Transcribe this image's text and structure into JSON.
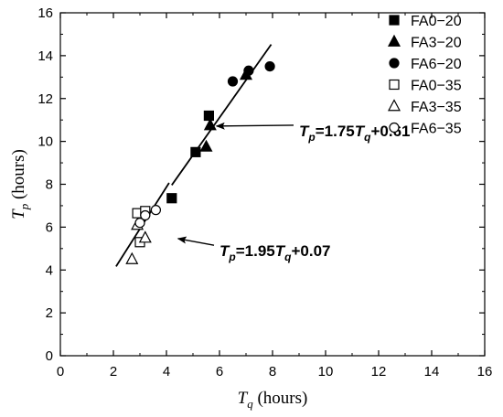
{
  "chart_data": {
    "type": "scatter",
    "title": "",
    "xlabel": {
      "main": "T",
      "sub": "q",
      "unit": " (hours)"
    },
    "ylabel": {
      "main": "T",
      "sub": "p",
      "unit": " (hours)"
    },
    "xlim": [
      0,
      16
    ],
    "ylim": [
      0,
      16
    ],
    "xticks": [
      "0",
      "2",
      "4",
      "6",
      "8",
      "10",
      "12",
      "14",
      "16"
    ],
    "yticks": [
      "0",
      "2",
      "4",
      "6",
      "8",
      "10",
      "12",
      "14",
      "16"
    ],
    "grid": false,
    "legend_position": "top-right",
    "series": [
      {
        "name": "FA0−20",
        "marker": "square",
        "filled": true,
        "points": [
          [
            4.2,
            7.35
          ],
          [
            5.1,
            9.5
          ],
          [
            5.6,
            11.2
          ]
        ]
      },
      {
        "name": "FA3−20",
        "marker": "triangle",
        "filled": true,
        "points": [
          [
            5.5,
            9.75
          ],
          [
            5.65,
            10.75
          ],
          [
            7.0,
            13.1
          ]
        ]
      },
      {
        "name": "FA6−20",
        "marker": "circle",
        "filled": true,
        "points": [
          [
            6.5,
            12.8
          ],
          [
            7.1,
            13.3
          ],
          [
            7.9,
            13.5
          ]
        ]
      },
      {
        "name": "FA0−35",
        "marker": "square",
        "filled": false,
        "points": [
          [
            2.9,
            6.65
          ],
          [
            3.0,
            5.3
          ],
          [
            3.2,
            6.75
          ]
        ]
      },
      {
        "name": "FA3−35",
        "marker": "triangle",
        "filled": false,
        "points": [
          [
            2.7,
            4.5
          ],
          [
            2.9,
            6.1
          ],
          [
            3.2,
            5.5
          ]
        ]
      },
      {
        "name": "FA6−35",
        "marker": "circle",
        "filled": false,
        "points": [
          [
            3.0,
            6.2
          ],
          [
            3.2,
            6.55
          ],
          [
            3.6,
            6.8
          ]
        ]
      }
    ],
    "fits": [
      {
        "slope": 1.75,
        "intercept": 0.61,
        "x_range": [
          4.2,
          7.95
        ]
      },
      {
        "slope": 1.95,
        "intercept": 0.07,
        "x_range": [
          2.1,
          4.1
        ]
      }
    ],
    "annotations": [
      {
        "lhs_main": "T",
        "lhs_sub": "p",
        "mid": "=1.75",
        "rhs_main": "T",
        "rhs_sub": "q",
        "tail": "+0.61",
        "arrow_to": [
          5.75,
          10.8
        ],
        "text_at": [
          9.0,
          10.5
        ]
      },
      {
        "lhs_main": "T",
        "lhs_sub": "p",
        "mid": "=1.95",
        "rhs_main": "T",
        "rhs_sub": "q",
        "tail": "+0.07",
        "arrow_to": [
          4.3,
          5.55
        ],
        "text_at": [
          6.0,
          4.9
        ]
      }
    ]
  }
}
